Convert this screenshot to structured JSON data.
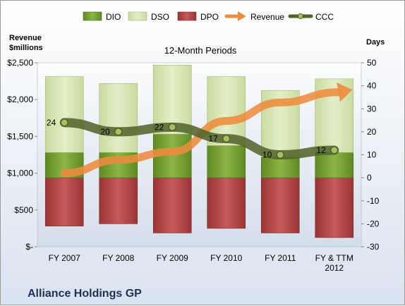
{
  "chart_data": {
    "type": "bar",
    "title": "Alliance Holdings GP",
    "subtitle": "12-Month Periods",
    "categories": [
      "FY 2007",
      "FY 2008",
      "FY 2009",
      "FY 2010",
      "FY 2011",
      "FY & TTM 2012"
    ],
    "left_axis": {
      "label_line1": "Revenue",
      "label_line2": "$millions",
      "ticks": [
        "$-",
        "$500",
        "$1,000",
        "$1,500",
        "$2,000",
        "$2,500"
      ],
      "range": [
        0,
        2500
      ]
    },
    "right_axis": {
      "label": "Days",
      "ticks": [
        "-30",
        "-20",
        "-10",
        "0",
        "10",
        "20",
        "30",
        "40",
        "50"
      ],
      "range": [
        -30,
        50
      ]
    },
    "series": [
      {
        "name": "DIO",
        "axis": "days",
        "type": "stacked-bar",
        "color": "#77a033",
        "values": [
          11,
          11,
          19,
          14,
          9,
          11
        ]
      },
      {
        "name": "DSO",
        "axis": "days",
        "type": "stacked-bar",
        "color": "#c3d69b",
        "values": [
          33,
          30,
          30,
          30,
          29,
          32
        ]
      },
      {
        "name": "DPO",
        "axis": "days",
        "type": "negative-bar",
        "color": "#b84a4a",
        "values": [
          21,
          20,
          24,
          22,
          24,
          26
        ]
      },
      {
        "name": "Revenue",
        "axis": "revenue",
        "type": "arrow-line",
        "color": "#ed8c3e",
        "values": [
          1000,
          1180,
          1290,
          1710,
          1960,
          2090
        ]
      },
      {
        "name": "CCC",
        "axis": "days",
        "type": "line",
        "color": "#4f6228",
        "values": [
          24,
          20,
          22,
          17,
          10,
          12
        ]
      }
    ],
    "ccc_labels": [
      "24",
      "20",
      "22",
      "17",
      "10",
      "12"
    ]
  }
}
